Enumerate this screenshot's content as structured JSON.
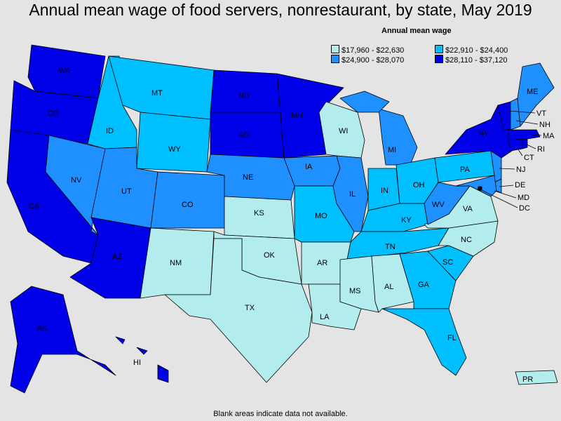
{
  "title": "Annual mean wage of food servers, nonrestaurant, by state, May 2019",
  "legend": {
    "title": "Annual mean wage",
    "bins": [
      {
        "label": "$17,960 - $22,630",
        "color": "#b3ecec"
      },
      {
        "label": "$22,910 - $24,400",
        "color": "#00bfff"
      },
      {
        "label": "$24,900 - $28,070",
        "color": "#1e90ff"
      },
      {
        "label": "$28,110 - $37,120",
        "color": "#0000e8"
      }
    ]
  },
  "footnote": "Blank areas indicate data not available.",
  "states": [
    {
      "code": "WA",
      "bin": 3
    },
    {
      "code": "OR",
      "bin": 3
    },
    {
      "code": "CA",
      "bin": 3
    },
    {
      "code": "NV",
      "bin": 2
    },
    {
      "code": "ID",
      "bin": 1
    },
    {
      "code": "MT",
      "bin": 1
    },
    {
      "code": "WY",
      "bin": 1
    },
    {
      "code": "UT",
      "bin": 2
    },
    {
      "code": "AZ",
      "bin": 3
    },
    {
      "code": "CO",
      "bin": 2
    },
    {
      "code": "NM",
      "bin": 0
    },
    {
      "code": "ND",
      "bin": 3
    },
    {
      "code": "SD",
      "bin": 3
    },
    {
      "code": "NE",
      "bin": 2
    },
    {
      "code": "KS",
      "bin": 0
    },
    {
      "code": "OK",
      "bin": 0
    },
    {
      "code": "TX",
      "bin": 0
    },
    {
      "code": "MN",
      "bin": 3
    },
    {
      "code": "IA",
      "bin": 2
    },
    {
      "code": "MO",
      "bin": 1
    },
    {
      "code": "AR",
      "bin": 0
    },
    {
      "code": "LA",
      "bin": 0
    },
    {
      "code": "WI",
      "bin": 0
    },
    {
      "code": "IL",
      "bin": 2
    },
    {
      "code": "MI",
      "bin": 2
    },
    {
      "code": "IN",
      "bin": 1
    },
    {
      "code": "OH",
      "bin": 1
    },
    {
      "code": "KY",
      "bin": 1
    },
    {
      "code": "TN",
      "bin": 1
    },
    {
      "code": "MS",
      "bin": 0
    },
    {
      "code": "AL",
      "bin": 0
    },
    {
      "code": "GA",
      "bin": 1
    },
    {
      "code": "FL",
      "bin": 1
    },
    {
      "code": "SC",
      "bin": 1
    },
    {
      "code": "NC",
      "bin": 0
    },
    {
      "code": "VA",
      "bin": 0
    },
    {
      "code": "WV",
      "bin": 2
    },
    {
      "code": "PA",
      "bin": 1
    },
    {
      "code": "NY",
      "bin": 3
    },
    {
      "code": "ME",
      "bin": 2
    },
    {
      "code": "VT",
      "bin": 3
    },
    {
      "code": "NH",
      "bin": 2
    },
    {
      "code": "MA",
      "bin": 3
    },
    {
      "code": "RI",
      "bin": 3
    },
    {
      "code": "CT",
      "bin": 3
    },
    {
      "code": "NJ",
      "bin": 2
    },
    {
      "code": "DE",
      "bin": 2
    },
    {
      "code": "MD",
      "bin": 2
    },
    {
      "code": "DC",
      "bin": 3
    },
    {
      "code": "AK",
      "bin": 3
    },
    {
      "code": "HI",
      "bin": 3
    },
    {
      "code": "PR",
      "bin": 0
    }
  ]
}
